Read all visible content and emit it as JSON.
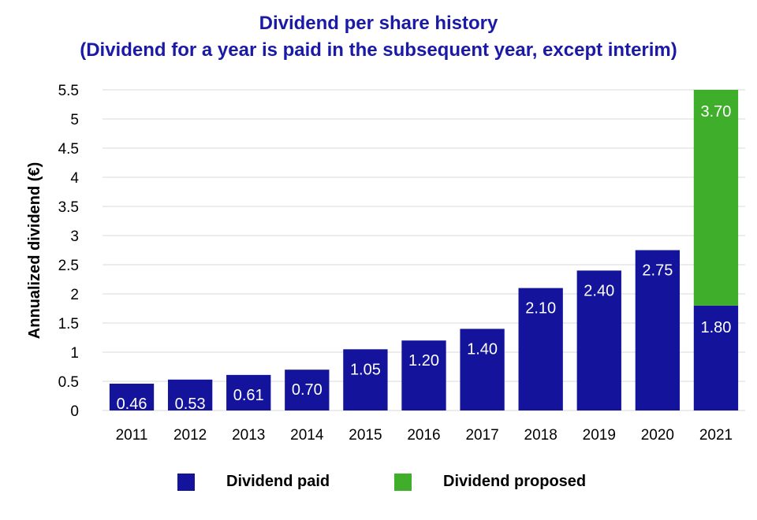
{
  "chart_data": {
    "type": "bar",
    "stacked": true,
    "title": [
      "Dividend per share history",
      "(Dividend for a year is paid in the subsequent year, except interim)"
    ],
    "xlabel": "",
    "ylabel": "Annualized dividend (€)",
    "ylim": [
      0,
      5.5
    ],
    "yticks": [
      "0",
      "0.5",
      "1",
      "1.5",
      "2",
      "2.5",
      "3",
      "3.5",
      "4",
      "4.5",
      "5",
      "5.5"
    ],
    "categories": [
      "2011",
      "2012",
      "2013",
      "2014",
      "2015",
      "2016",
      "2017",
      "2018",
      "2019",
      "2020",
      "2021"
    ],
    "grid": true,
    "legend_position": "bottom",
    "series": [
      {
        "name": "Dividend paid",
        "color": "#13139b",
        "values": [
          0.46,
          0.53,
          0.61,
          0.7,
          1.05,
          1.2,
          1.4,
          2.1,
          2.4,
          2.75,
          1.8
        ],
        "labels": [
          "0.46",
          "0.53",
          "0.61",
          "0.70",
          "1.05",
          "1.20",
          "1.40",
          "2.10",
          "2.40",
          "2.75",
          "1.80"
        ]
      },
      {
        "name": "Dividend proposed",
        "color": "#3fae2a",
        "values": [
          0,
          0,
          0,
          0,
          0,
          0,
          0,
          0,
          0,
          0,
          3.7
        ],
        "labels": [
          "",
          "",
          "",
          "",
          "",
          "",
          "",
          "",
          "",
          "",
          "3.70"
        ]
      }
    ]
  }
}
